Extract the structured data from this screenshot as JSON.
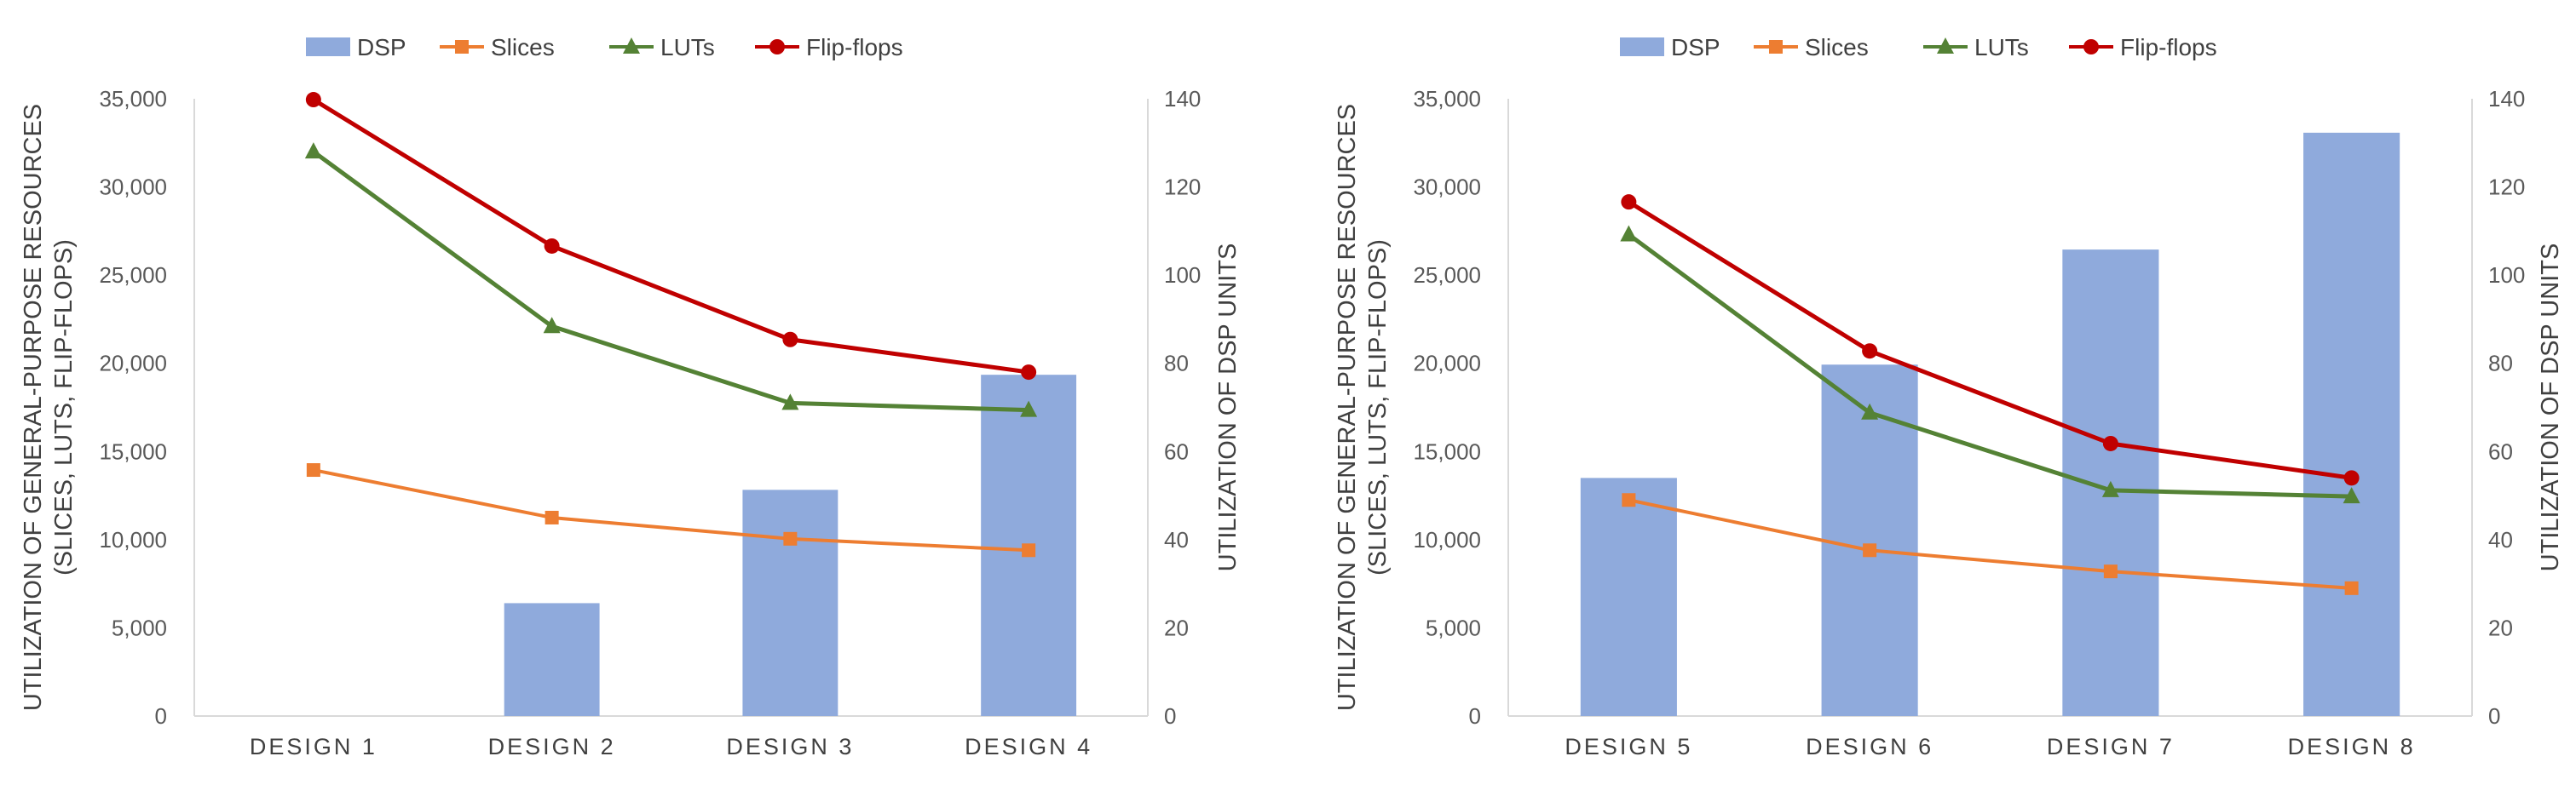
{
  "chart_data": [
    {
      "type": "bar+line",
      "categories": [
        "DESIGN 1",
        "DESIGN 2",
        "DESIGN 3",
        "DESIGN 4"
      ],
      "y_left_ticks": [
        "0",
        "5,000",
        "10,000",
        "15,000",
        "20,000",
        "25,000",
        "30,000",
        "35,000"
      ],
      "y_right_ticks": [
        "0",
        "20",
        "40",
        "60",
        "80",
        "100",
        "120",
        "140"
      ],
      "ylim_left": [
        0,
        35000
      ],
      "ylim_right": [
        0,
        140
      ],
      "ylabel_left_line1": "UTILIZATION OF GENERAL-PURPOSE RESOURCES",
      "ylabel_left_line2": "(SLICES, LUTS, FLIP-FLOPS)",
      "ylabel_right": "UTILIZATION OF DSP UNITS",
      "legend_position": "top-center",
      "series": [
        {
          "name": "DSP",
          "kind": "bar",
          "axis": "right",
          "color": "#8faadc",
          "values": [
            0,
            25.6,
            51.3,
            77.4
          ]
        },
        {
          "name": "Slices",
          "kind": "line",
          "marker": "square",
          "axis": "left",
          "color": "#ed7d31",
          "values": [
            13950,
            11250,
            10050,
            9400
          ]
        },
        {
          "name": "LUTs",
          "kind": "line",
          "marker": "triangle",
          "axis": "left",
          "color": "#548235",
          "values": [
            32000,
            22100,
            17750,
            17350
          ]
        },
        {
          "name": "Flip-flops",
          "kind": "line",
          "marker": "circle",
          "axis": "left",
          "color": "#c00000",
          "values": [
            34950,
            26650,
            21350,
            19500
          ]
        }
      ]
    },
    {
      "type": "bar+line",
      "categories": [
        "DESIGN 5",
        "DESIGN 6",
        "DESIGN 7",
        "DESIGN 8"
      ],
      "y_left_ticks": [
        "0",
        "5,000",
        "10,000",
        "15,000",
        "20,000",
        "25,000",
        "30,000",
        "35,000"
      ],
      "y_right_ticks": [
        "0",
        "20",
        "40",
        "60",
        "80",
        "100",
        "120",
        "140"
      ],
      "ylim_left": [
        0,
        35000
      ],
      "ylim_right": [
        0,
        140
      ],
      "ylabel_left_line1": "UTILIZATION OF GENERAL-PURPOSE RESOURCES",
      "ylabel_left_line2": "(SLICES, LUTS, FLIP-FLOPS)",
      "ylabel_right": "UTILIZATION OF DSP UNITS",
      "legend_position": "top-center",
      "series": [
        {
          "name": "DSP",
          "kind": "bar",
          "axis": "right",
          "color": "#8faadc",
          "values": [
            54,
            79.7,
            105.8,
            132.3
          ]
        },
        {
          "name": "Slices",
          "kind": "line",
          "marker": "square",
          "axis": "left",
          "color": "#ed7d31",
          "values": [
            12250,
            9400,
            8200,
            7250
          ]
        },
        {
          "name": "LUTs",
          "kind": "line",
          "marker": "triangle",
          "axis": "left",
          "color": "#548235",
          "values": [
            27300,
            17200,
            12800,
            12450
          ]
        },
        {
          "name": "Flip-flops",
          "kind": "line",
          "marker": "circle",
          "axis": "left",
          "color": "#c00000",
          "values": [
            29150,
            20700,
            15450,
            13500
          ]
        }
      ]
    }
  ]
}
